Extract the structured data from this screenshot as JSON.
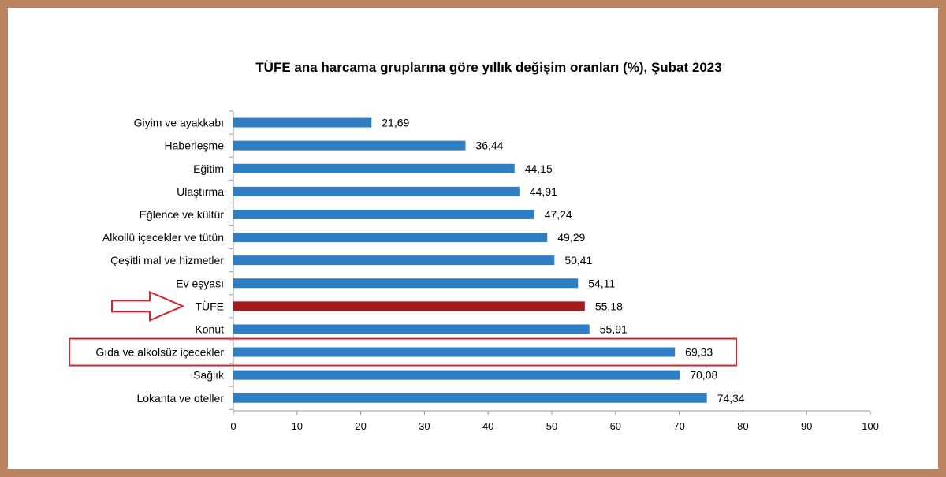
{
  "chart_data": {
    "type": "bar",
    "orientation": "horizontal",
    "title": "TÜFE ana harcama gruplarına göre yıllık değişim oranları (%), Şubat 2023",
    "categories": [
      "Giyim ve ayakkabı",
      "Haberleşme",
      "Eğitim",
      "Ulaştırma",
      "Eğlence ve kültür",
      "Alkollü içecekler ve tütün",
      "Çeşitli mal ve hizmetler",
      "Ev eşyası",
      "TÜFE",
      "Konut",
      "Gıda ve alkolsüz içecekler",
      "Sağlık",
      "Lokanta ve oteller"
    ],
    "values": [
      21.69,
      36.44,
      44.15,
      44.91,
      47.24,
      49.29,
      50.41,
      54.11,
      55.18,
      55.91,
      69.33,
      70.08,
      74.34
    ],
    "value_labels": [
      "21,69",
      "36,44",
      "44,15",
      "44,91",
      "47,24",
      "49,29",
      "50,41",
      "54,11",
      "55,18",
      "55,91",
      "69,33",
      "70,08",
      "74,34"
    ],
    "xlim": [
      0,
      100
    ],
    "xticks": [
      0,
      10,
      20,
      30,
      40,
      50,
      60,
      70,
      80,
      90,
      100
    ],
    "grid": false,
    "legend": "none",
    "bar_color": "#2f7ec3",
    "highlight_bar": "TÜFE",
    "highlight_color": "#a51c1c",
    "annotation_color": "#d9232d",
    "arrow_target": "TÜFE",
    "boxed_category": "Gıda ve alkolsüz içecekler"
  }
}
